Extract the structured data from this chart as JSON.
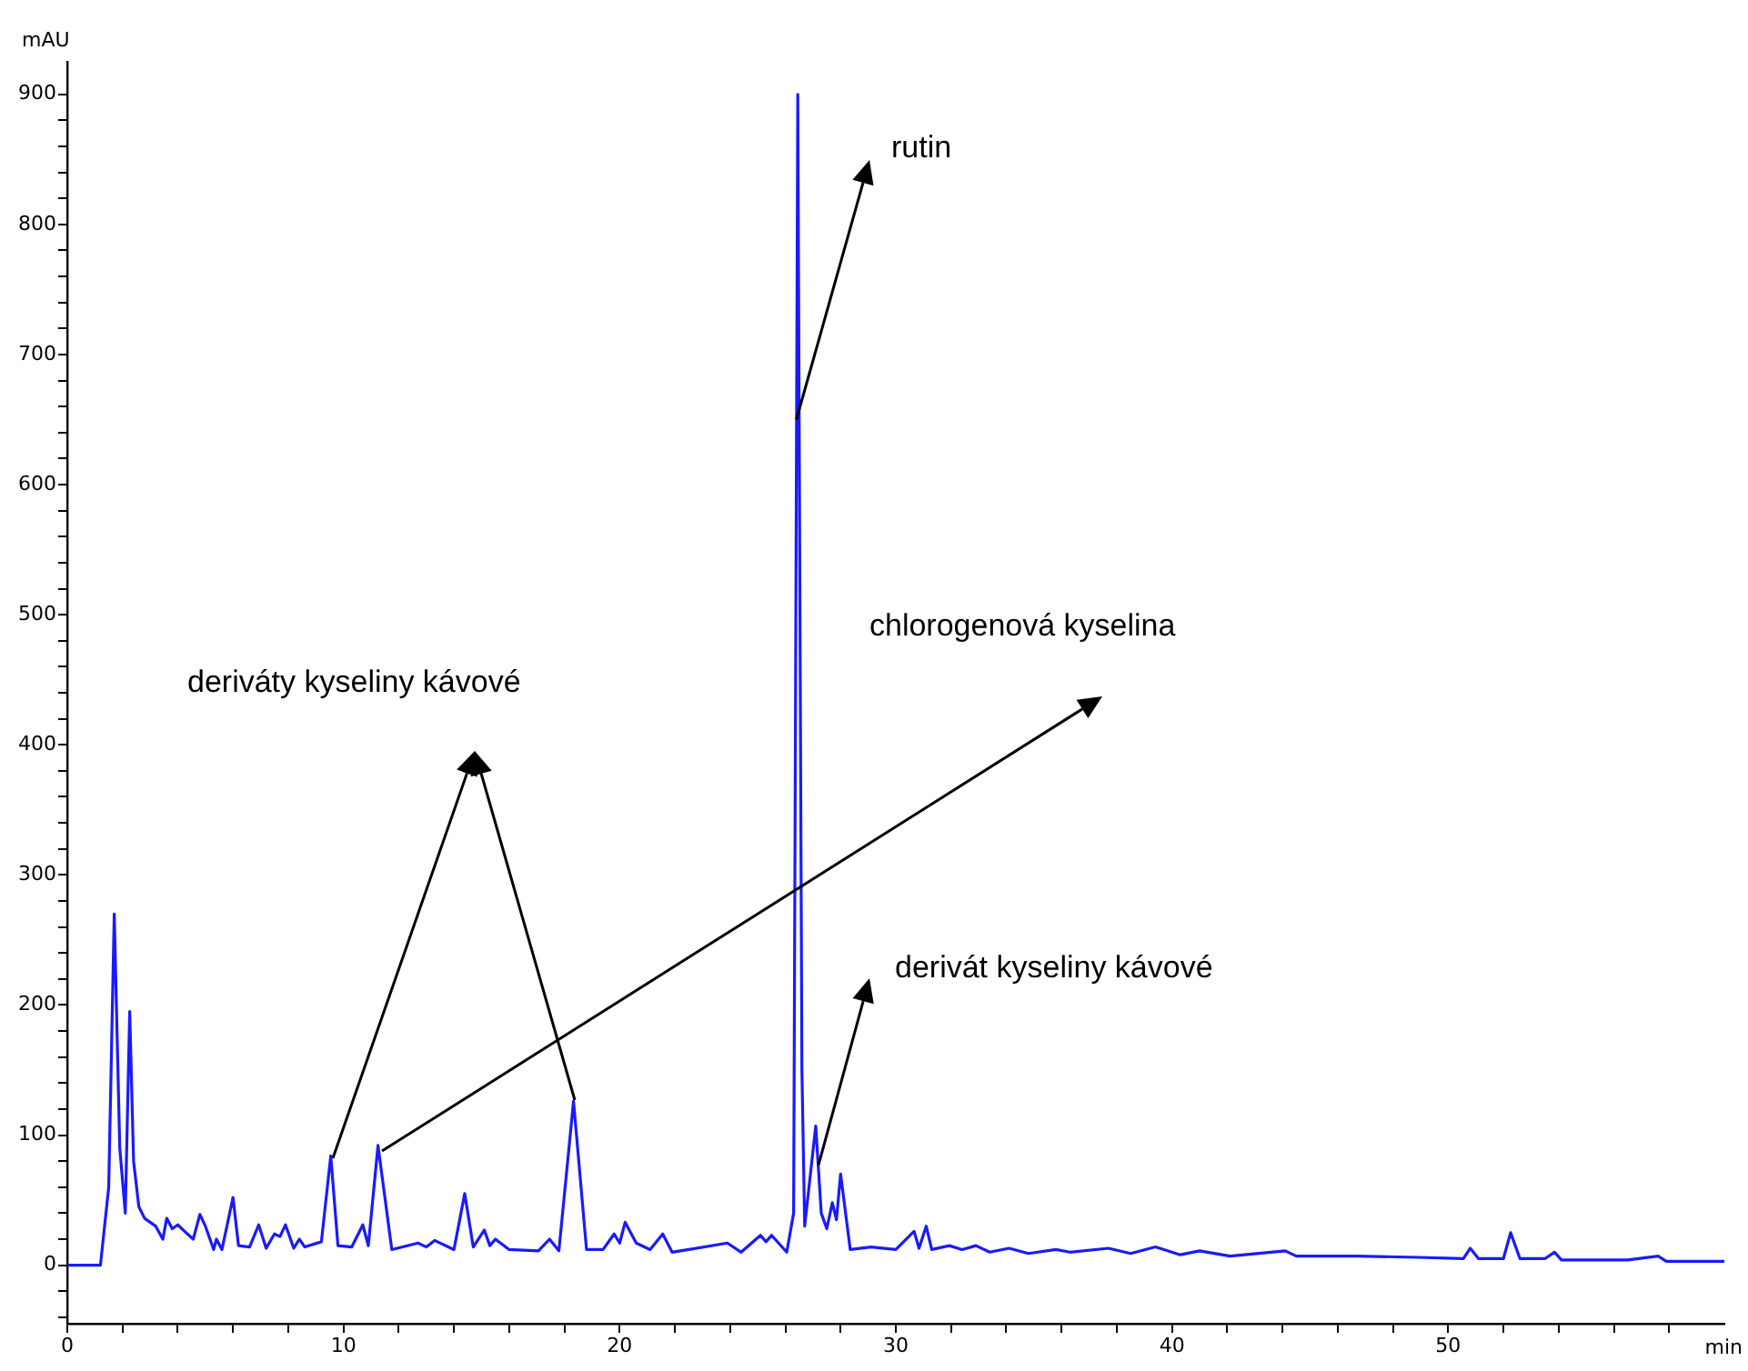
{
  "chart_data": {
    "type": "line",
    "xlabel": "min",
    "ylabel": "mAU",
    "xlim": [
      0,
      60
    ],
    "ylim": [
      -45,
      925
    ],
    "xticks": [
      0,
      {
        "value": 2,
        "label": null
      },
      {
        "value": 4,
        "label": null
      },
      {
        "value": 6,
        "label": null
      },
      {
        "value": 8,
        "label": null
      },
      10,
      {
        "value": 12,
        "label": null
      },
      {
        "value": 14,
        "label": null
      },
      {
        "value": 16,
        "label": null
      },
      {
        "value": 18,
        "label": null
      },
      20,
      {
        "value": 22,
        "label": null
      },
      {
        "value": 24,
        "label": null
      },
      {
        "value": 26,
        "label": null
      },
      {
        "value": 28,
        "label": null
      },
      30,
      {
        "value": 32,
        "label": null
      },
      {
        "value": 34,
        "label": null
      },
      {
        "value": 36,
        "label": null
      },
      {
        "value": 38,
        "label": null
      },
      40,
      {
        "value": 42,
        "label": null
      },
      {
        "value": 44,
        "label": null
      },
      {
        "value": 46,
        "label": null
      },
      {
        "value": 48,
        "label": null
      },
      50,
      {
        "value": 52,
        "label": null
      },
      {
        "value": 54,
        "label": null
      },
      {
        "value": 56,
        "label": null
      },
      {
        "value": 58,
        "label": null
      }
    ],
    "yticks": [
      {
        "value": -40,
        "label": null
      },
      {
        "value": -20,
        "label": null
      },
      0,
      {
        "value": 20,
        "label": null
      },
      {
        "value": 40,
        "label": null
      },
      {
        "value": 60,
        "label": null
      },
      {
        "value": 80,
        "label": null
      },
      100,
      {
        "value": 120,
        "label": null
      },
      {
        "value": 140,
        "label": null
      },
      {
        "value": 160,
        "label": null
      },
      {
        "value": 180,
        "label": null
      },
      200,
      {
        "value": 220,
        "label": null
      },
      {
        "value": 240,
        "label": null
      },
      {
        "value": 260,
        "label": null
      },
      {
        "value": 280,
        "label": null
      },
      300,
      {
        "value": 320,
        "label": null
      },
      {
        "value": 340,
        "label": null
      },
      {
        "value": 360,
        "label": null
      },
      {
        "value": 380,
        "label": null
      },
      400,
      {
        "value": 420,
        "label": null
      },
      {
        "value": 440,
        "label": null
      },
      {
        "value": 460,
        "label": null
      },
      {
        "value": 480,
        "label": null
      },
      500,
      {
        "value": 520,
        "label": null
      },
      {
        "value": 540,
        "label": null
      },
      {
        "value": 560,
        "label": null
      },
      {
        "value": 580,
        "label": null
      },
      600,
      {
        "value": 620,
        "label": null
      },
      {
        "value": 640,
        "label": null
      },
      {
        "value": 660,
        "label": null
      },
      {
        "value": 680,
        "label": null
      },
      700,
      {
        "value": 720,
        "label": null
      },
      {
        "value": 740,
        "label": null
      },
      {
        "value": 760,
        "label": null
      },
      {
        "value": 780,
        "label": null
      },
      800,
      {
        "value": 820,
        "label": null
      },
      {
        "value": 840,
        "label": null
      },
      {
        "value": 860,
        "label": null
      },
      {
        "value": 880,
        "label": null
      },
      900
    ],
    "grid": false,
    "legend": false,
    "marker": "none",
    "line_style": "solid",
    "series": [
      {
        "color": "#1a1aff",
        "x": [
          0,
          1.2,
          1.5,
          1.7,
          1.9,
          2.1,
          2.26,
          2.4,
          2.59,
          2.8,
          3.2,
          3.46,
          3.6,
          3.8,
          4.0,
          4.3,
          4.56,
          4.8,
          5.0,
          5.3,
          5.4,
          5.6,
          6.0,
          6.2,
          6.6,
          6.93,
          7.2,
          7.5,
          7.7,
          7.9,
          8.2,
          8.4,
          8.6,
          9.2,
          9.54,
          9.8,
          10.3,
          10.7,
          10.9,
          11.25,
          11.75,
          12.7,
          13.0,
          13.3,
          14.0,
          14.39,
          14.7,
          15.1,
          15.3,
          15.5,
          16.0,
          17.06,
          17.46,
          17.8,
          18.33,
          18.8,
          19.4,
          19.8,
          20.0,
          20.2,
          20.6,
          21.1,
          21.56,
          21.9,
          22.5,
          23.9,
          24.4,
          25.1,
          25.3,
          25.5,
          26.05,
          26.3,
          26.45,
          26.6,
          26.7,
          27.1,
          27.3,
          27.5,
          27.7,
          27.85,
          28.0,
          28.35,
          29.1,
          30.0,
          30.66,
          30.84,
          31.1,
          31.3,
          31.94,
          32.4,
          32.9,
          33.4,
          34.1,
          34.8,
          35.8,
          36.3,
          37.7,
          38.5,
          39.4,
          40.3,
          41.0,
          42.1,
          44.1,
          44.5,
          46.7,
          48.9,
          50.55,
          50.8,
          51.1,
          52.0,
          52.26,
          52.6,
          53.5,
          53.85,
          54.1,
          56.5,
          57.6,
          57.9,
          59.0,
          60.0
        ],
        "values": [
          0,
          0,
          60,
          270,
          90,
          40,
          195,
          80,
          45,
          36,
          30,
          20,
          36,
          28,
          31,
          25,
          20,
          39,
          30,
          12,
          20,
          12,
          52,
          15,
          14,
          31,
          13,
          24,
          22,
          31,
          13,
          20,
          14,
          18,
          84,
          15,
          14,
          31,
          15,
          92,
          12,
          17,
          14,
          19,
          12,
          55,
          14,
          27,
          15,
          20,
          12,
          11,
          20,
          11,
          126,
          12,
          12,
          24,
          17,
          33,
          17,
          12,
          24,
          10,
          12,
          17,
          10,
          23,
          18,
          23,
          10,
          40,
          900,
          150,
          30,
          107,
          40,
          28,
          48,
          35,
          70,
          12,
          14,
          12,
          26,
          13,
          30,
          12,
          15,
          12,
          15,
          10,
          13,
          9,
          12,
          10,
          13,
          9,
          14,
          8,
          11,
          7,
          11,
          7,
          7,
          6,
          5,
          13,
          5,
          5,
          25,
          5,
          5,
          10,
          4,
          4,
          7,
          3,
          3,
          3
        ]
      }
    ],
    "annotations": [
      "deriváty kyseliny kávové",
      {
        "text": "rutin",
        "x": 26.4,
        "y": 650
      },
      "chlorogenová kyselina",
      {
        "text": "derivát kyseliny kávové",
        "x": 27.2,
        "y": 77
      }
    ]
  }
}
